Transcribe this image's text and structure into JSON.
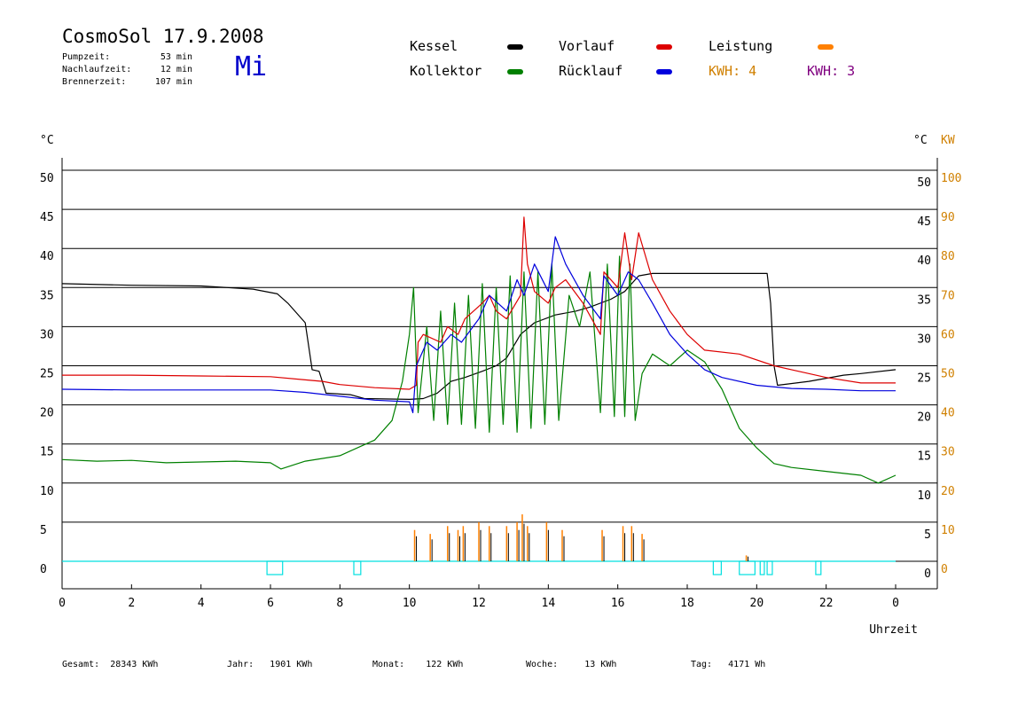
{
  "header": {
    "title": "CosmoSol 17.9.2008",
    "weekday": "Mi",
    "stats": [
      {
        "label": "Pumpzeit:",
        "value": "53 min"
      },
      {
        "label": "Nachlaufzeit:",
        "value": "12 min"
      },
      {
        "label": "Brennerzeit:",
        "value": "107 min"
      }
    ]
  },
  "legend": {
    "kessel": "Kessel",
    "kollektor": "Kollektor",
    "vorlauf": "Vorlauf",
    "ruecklauf": "Rücklauf",
    "leistung": "Leistung",
    "kwh1": "KWH: 4",
    "kwh2": "KWH: 3"
  },
  "colors": {
    "kessel": "#000000",
    "kollektor": "#008000",
    "vorlauf": "#dd0000",
    "ruecklauf": "#0000dd",
    "leistung": "#ff8000",
    "kwh_orange": "#d08000",
    "kwh_purple": "#800080",
    "baseline": "#00e0e0"
  },
  "footer": [
    {
      "label": "Gesamt:",
      "value": "28343 KWh"
    },
    {
      "label": "Jahr:",
      "value": "1901 KWh"
    },
    {
      "label": "Monat:",
      "value": "122 KWh"
    },
    {
      "label": "Woche:",
      "value": "13 KWh"
    },
    {
      "label": "Tag:",
      "value": "4171 Wh"
    }
  ],
  "chart_data": {
    "type": "line",
    "xlabel": "Uhrzeit",
    "x_ticks": [
      "0",
      "2",
      "4",
      "6",
      "8",
      "10",
      "12",
      "14",
      "16",
      "18",
      "20",
      "22",
      "0"
    ],
    "xlim": [
      0,
      24
    ],
    "ylabel_left": "°C",
    "ylabel_right_temp": "°C",
    "ylabel_right_power": "KW",
    "ylim": [
      0,
      50
    ],
    "y_ticks": [
      0,
      5,
      10,
      15,
      20,
      25,
      30,
      35,
      40,
      45,
      50
    ],
    "power_ticks": [
      0,
      10,
      20,
      30,
      40,
      50,
      60,
      70,
      80,
      90,
      100
    ],
    "grid": true,
    "series": [
      {
        "name": "Kessel",
        "key": "kessel",
        "x": [
          0,
          2,
          4,
          5.5,
          6.2,
          6.5,
          7.0,
          7.2,
          7.4,
          7.6,
          8.3,
          8.7,
          10.0,
          10.4,
          10.8,
          11.2,
          11.6,
          12.1,
          12.5,
          12.8,
          13.2,
          13.6,
          14.2,
          14.8,
          15.2,
          15.8,
          16.2,
          16.6,
          17.0,
          17.5,
          18.5,
          19.5,
          20.3,
          20.4,
          20.5,
          20.6,
          21.5,
          22.5,
          23.0,
          24.0
        ],
        "y": [
          35.5,
          35.3,
          35.2,
          34.8,
          34.2,
          33.0,
          30.5,
          24.5,
          24.3,
          21.5,
          21.3,
          20.8,
          20.7,
          20.8,
          21.5,
          23.0,
          23.5,
          24.3,
          25.0,
          26.0,
          29.0,
          30.5,
          31.5,
          32.0,
          32.5,
          33.5,
          34.5,
          36.5,
          36.8,
          36.8,
          36.8,
          36.8,
          36.8,
          33.0,
          25.0,
          22.5,
          23.0,
          23.8,
          24.0,
          24.5
        ]
      },
      {
        "name": "Kollektor",
        "key": "kollektor",
        "x": [
          0,
          1,
          2,
          3,
          4,
          5,
          6,
          6.3,
          7,
          8,
          9,
          9.5,
          9.8,
          10.0,
          10.12,
          10.25,
          10.5,
          10.7,
          10.9,
          11.1,
          11.3,
          11.5,
          11.7,
          11.9,
          12.1,
          12.3,
          12.5,
          12.7,
          12.9,
          13.1,
          13.3,
          13.5,
          13.7,
          13.9,
          14.1,
          14.3,
          14.6,
          14.9,
          15.2,
          15.5,
          15.7,
          15.9,
          16.05,
          16.2,
          16.35,
          16.5,
          16.7,
          17.0,
          17.5,
          18.0,
          18.5,
          19.0,
          19.5,
          20.0,
          20.5,
          21.0,
          22.0,
          23.0,
          23.5,
          24.0
        ],
        "y": [
          13.0,
          12.8,
          12.9,
          12.6,
          12.7,
          12.8,
          12.6,
          11.8,
          12.8,
          13.5,
          15.5,
          18.0,
          23.0,
          29.0,
          35.0,
          19.0,
          30.0,
          18.0,
          32.0,
          17.5,
          33.0,
          17.5,
          34.0,
          17.0,
          35.5,
          16.5,
          35.0,
          17.5,
          36.5,
          16.5,
          37.0,
          17.0,
          37.0,
          17.5,
          38.0,
          18.0,
          34.0,
          30.0,
          37.0,
          19.0,
          38.0,
          18.5,
          39.0,
          18.5,
          38.0,
          18.0,
          24.0,
          26.5,
          25.0,
          27.0,
          25.5,
          22.0,
          17.0,
          14.5,
          12.5,
          12.0,
          11.5,
          11.0,
          10.0,
          11.0
        ]
      },
      {
        "name": "Vorlauf",
        "key": "vorlauf",
        "x": [
          0,
          2,
          4,
          6,
          7.0,
          7.5,
          8,
          9,
          10.0,
          10.2,
          10.25,
          10.4,
          10.9,
          11.1,
          11.4,
          11.6,
          12.1,
          12.3,
          12.5,
          12.8,
          13.2,
          13.3,
          13.4,
          13.6,
          14.0,
          14.2,
          14.5,
          15.0,
          15.5,
          15.6,
          16.0,
          16.2,
          16.4,
          16.6,
          17.0,
          17.5,
          18.0,
          18.5,
          19.5,
          20.5,
          21.0,
          22.0,
          23.0,
          24.0
        ],
        "y": [
          23.8,
          23.8,
          23.7,
          23.6,
          23.2,
          23.0,
          22.6,
          22.2,
          22.0,
          22.5,
          28.0,
          29.0,
          28.0,
          30.0,
          29.0,
          31.0,
          33.0,
          34.0,
          32.0,
          31.0,
          34.0,
          44.0,
          38.0,
          34.5,
          33.0,
          35.0,
          36.0,
          33.0,
          29.0,
          37.0,
          35.0,
          42.0,
          36.0,
          42.0,
          36.0,
          32.0,
          29.0,
          27.0,
          26.5,
          25.0,
          24.5,
          23.5,
          22.8,
          22.8
        ]
      },
      {
        "name": "Rücklauf",
        "key": "ruecklauf",
        "x": [
          0,
          2,
          4,
          6,
          7.0,
          8,
          9,
          10.0,
          10.1,
          10.2,
          10.5,
          10.8,
          11.2,
          11.5,
          12.0,
          12.3,
          12.8,
          13.1,
          13.3,
          13.6,
          14.0,
          14.2,
          14.5,
          15.0,
          15.5,
          15.6,
          16.0,
          16.3,
          16.6,
          17.0,
          17.5,
          18.0,
          18.5,
          19.0,
          20.0,
          21.0,
          22.0,
          23.0,
          24.0
        ],
        "y": [
          22.0,
          21.9,
          21.9,
          21.9,
          21.6,
          21.1,
          20.6,
          20.4,
          19.0,
          25.0,
          28.0,
          27.0,
          29.0,
          28.0,
          31.0,
          34.0,
          32.0,
          36.0,
          34.0,
          38.0,
          34.5,
          41.5,
          38.0,
          34.0,
          31.0,
          36.5,
          34.0,
          37.0,
          36.0,
          33.0,
          29.0,
          26.5,
          24.5,
          23.5,
          22.5,
          22.1,
          22.0,
          21.8,
          21.8
        ]
      }
    ],
    "power": {
      "name": "Leistung",
      "unit": "KW",
      "x": [
        10.15,
        10.6,
        11.1,
        11.4,
        11.55,
        12.0,
        12.3,
        12.8,
        13.1,
        13.25,
        13.4,
        13.95,
        14.4,
        15.55,
        16.15,
        16.4,
        16.7,
        19.7
      ],
      "y": [
        8.0,
        7.0,
        9.0,
        8.0,
        9.0,
        10.0,
        9.0,
        9.0,
        10.0,
        12.0,
        9.0,
        10.0,
        8.0,
        8.0,
        9.0,
        9.0,
        7.0,
        1.5
      ]
    },
    "burner_on": [
      [
        5.9,
        6.35
      ],
      [
        8.4,
        8.6
      ],
      [
        18.75,
        18.98
      ],
      [
        19.5,
        19.95
      ],
      [
        20.1,
        20.22
      ],
      [
        20.3,
        20.45
      ],
      [
        21.7,
        21.85
      ]
    ]
  }
}
